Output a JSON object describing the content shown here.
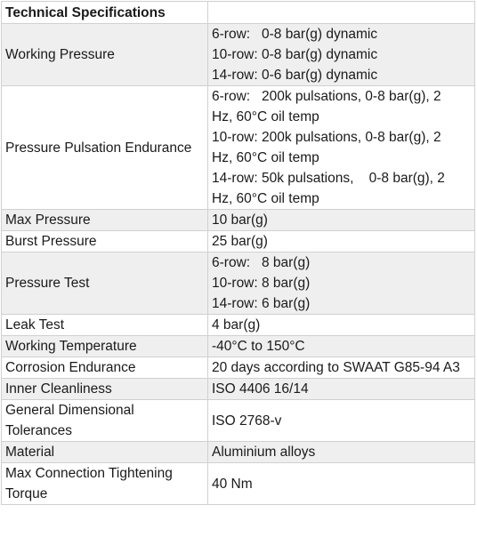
{
  "table": {
    "header": {
      "title": "Technical Specifications",
      "value": ""
    },
    "rows": [
      {
        "label": "Working Pressure",
        "lines": [
          "6-row:   0-8 bar(g) dynamic",
          "10-row: 0-8 bar(g) dynamic",
          "14-row: 0-6 bar(g) dynamic"
        ]
      },
      {
        "label": "Pressure Pulsation Endurance",
        "lines": [
          "6-row:   200k pulsations, 0-8 bar(g), 2",
          "Hz, 60°C oil temp",
          "10-row: 200k pulsations, 0-8 bar(g), 2",
          "Hz, 60°C oil temp",
          "14-row: 50k pulsations,    0-8 bar(g), 2",
          "Hz, 60°C oil temp"
        ]
      },
      {
        "label": "Max Pressure",
        "value": "10 bar(g)"
      },
      {
        "label": "Burst Pressure",
        "value": "25 bar(g)"
      },
      {
        "label": "Pressure Test",
        "lines": [
          "6-row:   8 bar(g)",
          "10-row: 8 bar(g)",
          "14-row: 6 bar(g)"
        ]
      },
      {
        "label": "Leak Test",
        "value": "4 bar(g)"
      },
      {
        "label": "Working Temperature",
        "value": "-40°C to 150°C"
      },
      {
        "label": "Corrosion Endurance",
        "value": "20 days according to SWAAT G85-94 A3"
      },
      {
        "label": "Inner Cleanliness",
        "value": "ISO 4406 16/14"
      },
      {
        "label": "General Dimensional Tolerances",
        "value": "ISO 2768-v"
      },
      {
        "label": "Material",
        "value": "Aluminium alloys"
      },
      {
        "label": "Max Connection Tightening Torque",
        "value": "40 Nm"
      }
    ]
  },
  "colors": {
    "shaded_row": "#efefef",
    "white_row": "#ffffff",
    "border": "#d0d0d0",
    "text": "#1a1a1a"
  }
}
